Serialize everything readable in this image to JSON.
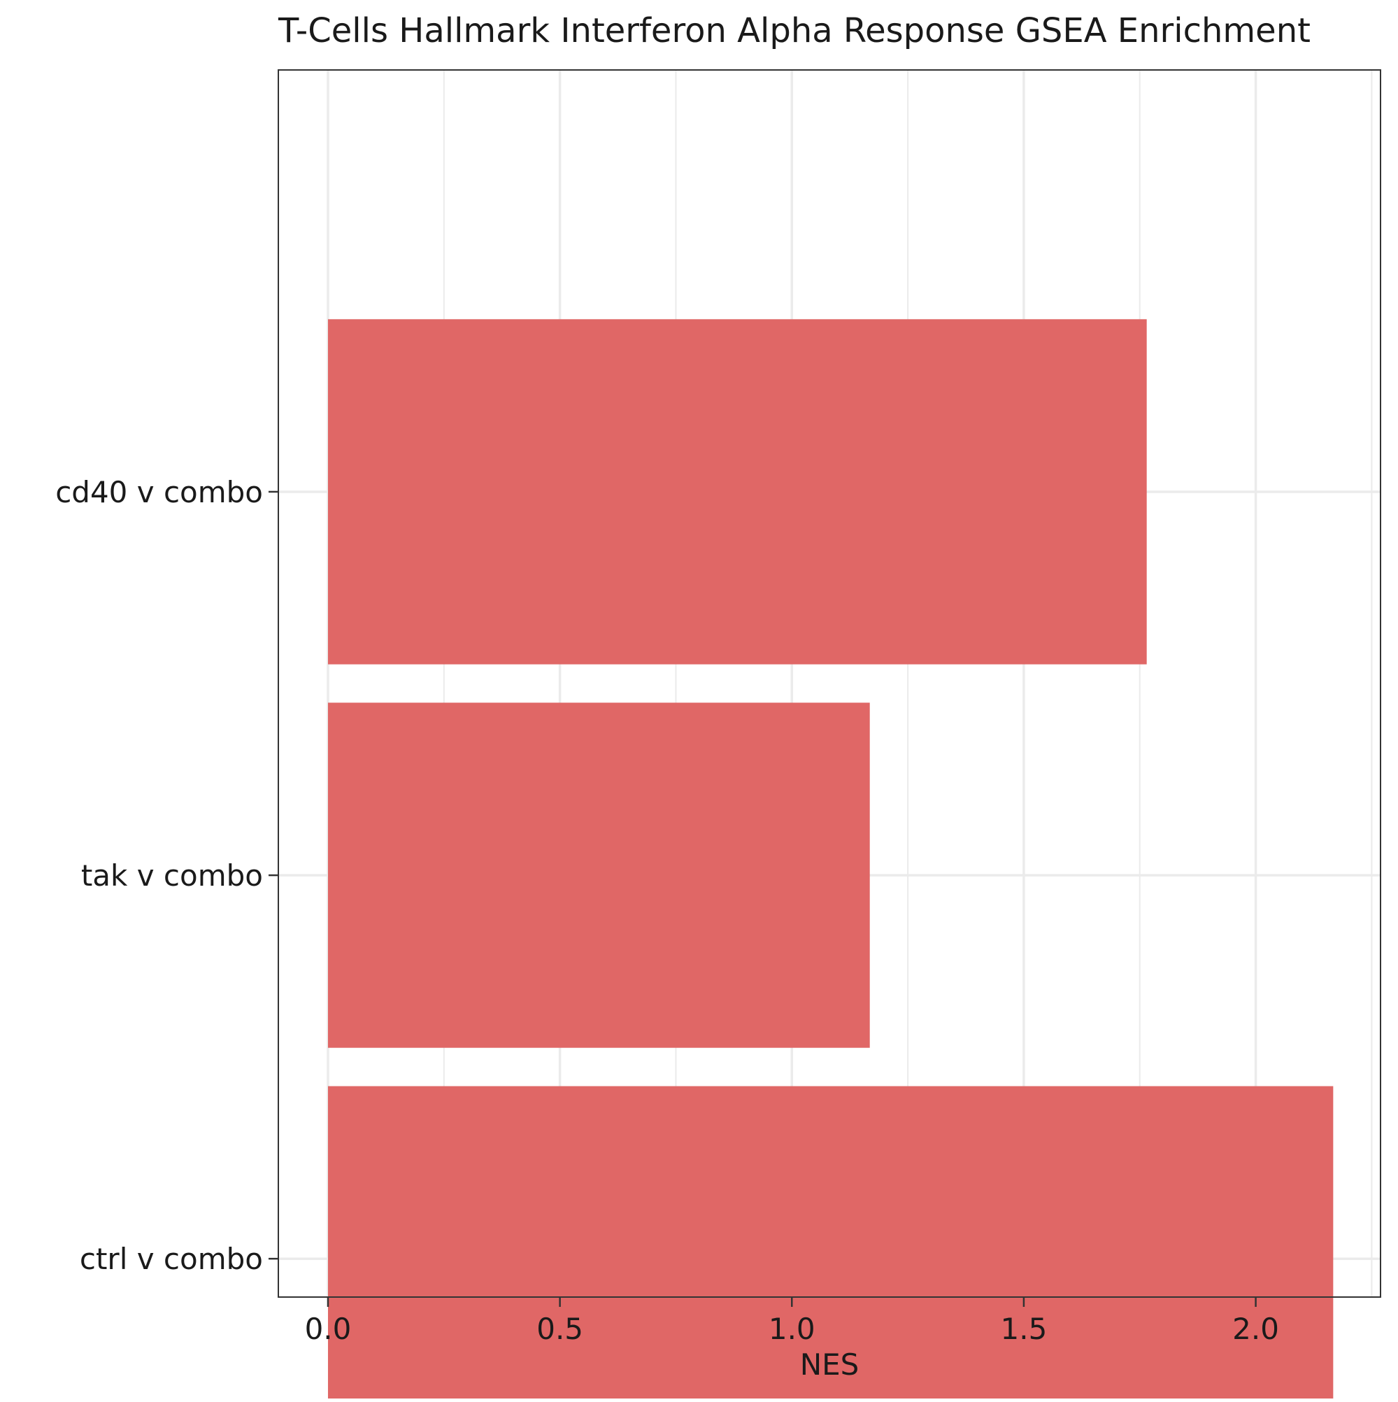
{
  "chart_data": {
    "type": "bar",
    "orientation": "horizontal",
    "title": "T-Cells Hallmark Interferon Alpha Response GSEA Enrichment",
    "xlabel": "NES",
    "ylabel": "",
    "categories": [
      "cd40 v combo",
      "tak v combo",
      "ctrl v combo"
    ],
    "values": [
      1.765,
      1.168,
      2.167
    ],
    "xlim": [
      -0.107,
      2.269
    ],
    "xticks": [
      0.0,
      0.5,
      1.0,
      1.5,
      2.0
    ],
    "xtick_labels": [
      "0.0",
      "0.5",
      "1.0",
      "1.5",
      "2.0"
    ],
    "minor_xticks": [
      0.25,
      0.75,
      1.25,
      1.75,
      2.25
    ],
    "bar_color": "#E06766",
    "grid": true,
    "legend": "none"
  }
}
